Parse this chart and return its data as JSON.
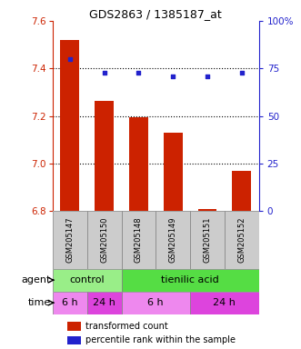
{
  "title": "GDS2863 / 1385187_at",
  "samples": [
    "GSM205147",
    "GSM205150",
    "GSM205148",
    "GSM205149",
    "GSM205151",
    "GSM205152"
  ],
  "bar_values": [
    7.52,
    7.265,
    7.195,
    7.13,
    6.81,
    6.97
  ],
  "percentile_values": [
    80,
    73,
    73,
    71,
    71,
    73
  ],
  "ylim_left": [
    6.8,
    7.6
  ],
  "ylim_right": [
    0,
    100
  ],
  "yticks_left": [
    6.8,
    7.0,
    7.2,
    7.4,
    7.6
  ],
  "yticks_right": [
    0,
    25,
    50,
    75,
    100
  ],
  "bar_color": "#cc2200",
  "dot_color": "#2222cc",
  "bar_width": 0.55,
  "agent_row": [
    {
      "label": "control",
      "span": [
        0,
        2
      ],
      "color": "#99ee88"
    },
    {
      "label": "tienilic acid",
      "span": [
        2,
        6
      ],
      "color": "#55dd44"
    }
  ],
  "time_row": [
    {
      "label": "6 h",
      "span": [
        0,
        1
      ],
      "color": "#ee88ee"
    },
    {
      "label": "24 h",
      "span": [
        1,
        2
      ],
      "color": "#dd44dd"
    },
    {
      "label": "6 h",
      "span": [
        2,
        4
      ],
      "color": "#ee88ee"
    },
    {
      "label": "24 h",
      "span": [
        4,
        6
      ],
      "color": "#dd44dd"
    }
  ],
  "dotted_lines": [
    7.0,
    7.2,
    7.4
  ],
  "legend_bar_label": "transformed count",
  "legend_dot_label": "percentile rank within the sample",
  "left_axis_color": "#cc2200",
  "right_axis_color": "#2222cc",
  "sample_box_color": "#cccccc"
}
